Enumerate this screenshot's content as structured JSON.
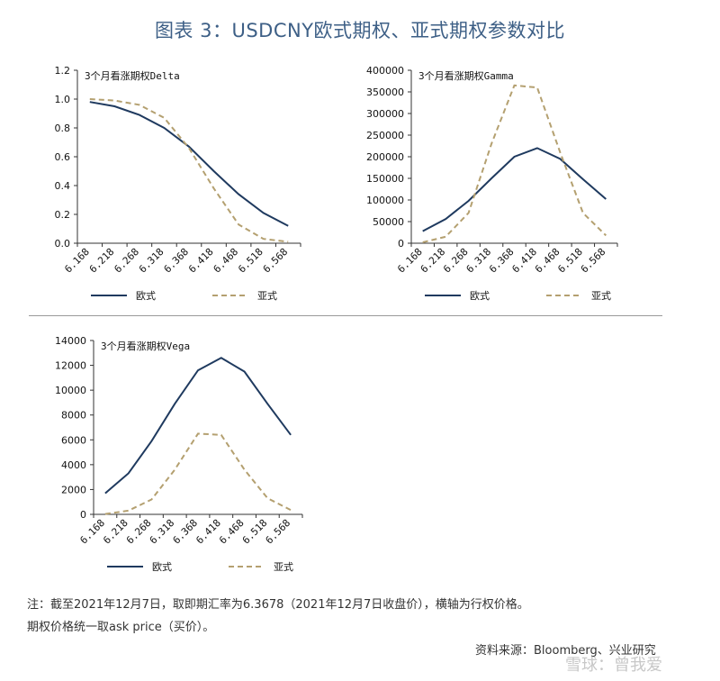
{
  "figure_title": "图表 3：USDCNY欧式期权、亚式期权参数对比",
  "note_line1": "注：截至2021年12月7日，取即期汇率为6.3678（2021年12月7日收盘价），横轴为行权价格。",
  "note_line2": "期权价格统一取ask price（买价）。",
  "source": "资料来源：Bloomberg、兴业研究",
  "watermark": "雪球：曾我爱",
  "colors": {
    "european": "#1f3a5f",
    "asian": "#b4a070",
    "title": "#3d5f86"
  },
  "chart_data": [
    {
      "type": "line",
      "title": "3个月看涨期权Delta",
      "categories": [
        "6.168",
        "6.218",
        "6.268",
        "6.318",
        "6.368",
        "6.418",
        "6.468",
        "6.518",
        "6.568"
      ],
      "ylim": [
        0,
        1.2
      ],
      "yticks": [
        "0.0",
        "0.2",
        "0.4",
        "0.6",
        "0.8",
        "1.0",
        "1.2"
      ],
      "grid": false,
      "legend_position": "bottom",
      "series": [
        {
          "name": "欧式",
          "style": "solid",
          "values": [
            0.98,
            0.95,
            0.89,
            0.8,
            0.67,
            0.5,
            0.34,
            0.21,
            0.12
          ]
        },
        {
          "name": "亚式",
          "style": "dashed",
          "values": [
            1.0,
            0.99,
            0.96,
            0.87,
            0.66,
            0.38,
            0.13,
            0.03,
            0.01
          ]
        }
      ]
    },
    {
      "type": "line",
      "title": "3个月看涨期权Gamma",
      "categories": [
        "6.168",
        "6.218",
        "6.268",
        "6.318",
        "6.368",
        "6.418",
        "6.468",
        "6.518",
        "6.568"
      ],
      "ylim": [
        0,
        400000
      ],
      "yticks": [
        "0",
        "50000",
        "100000",
        "150000",
        "200000",
        "250000",
        "300000",
        "350000",
        "400000"
      ],
      "grid": false,
      "legend_position": "bottom",
      "series": [
        {
          "name": "欧式",
          "style": "solid",
          "values": [
            28000,
            56000,
            98000,
            150000,
            200000,
            220000,
            195000,
            148000,
            102000
          ]
        },
        {
          "name": "亚式",
          "style": "dashed",
          "values": [
            2000,
            15000,
            70000,
            230000,
            365000,
            360000,
            210000,
            70000,
            18000
          ]
        }
      ]
    },
    {
      "type": "line",
      "title": "3个月看涨期权Vega",
      "categories": [
        "6.168",
        "6.218",
        "6.268",
        "6.318",
        "6.368",
        "6.418",
        "6.468",
        "6.518",
        "6.568"
      ],
      "ylim": [
        0,
        14000
      ],
      "yticks": [
        "0",
        "2000",
        "4000",
        "6000",
        "8000",
        "10000",
        "12000",
        "14000"
      ],
      "grid": false,
      "legend_position": "bottom",
      "series": [
        {
          "name": "欧式",
          "style": "solid",
          "values": [
            1700,
            3300,
            5900,
            8900,
            11600,
            12600,
            11500,
            8900,
            6400
          ]
        },
        {
          "name": "亚式",
          "style": "dashed",
          "values": [
            30,
            300,
            1200,
            3600,
            6500,
            6400,
            3600,
            1300,
            350
          ]
        }
      ]
    }
  ]
}
